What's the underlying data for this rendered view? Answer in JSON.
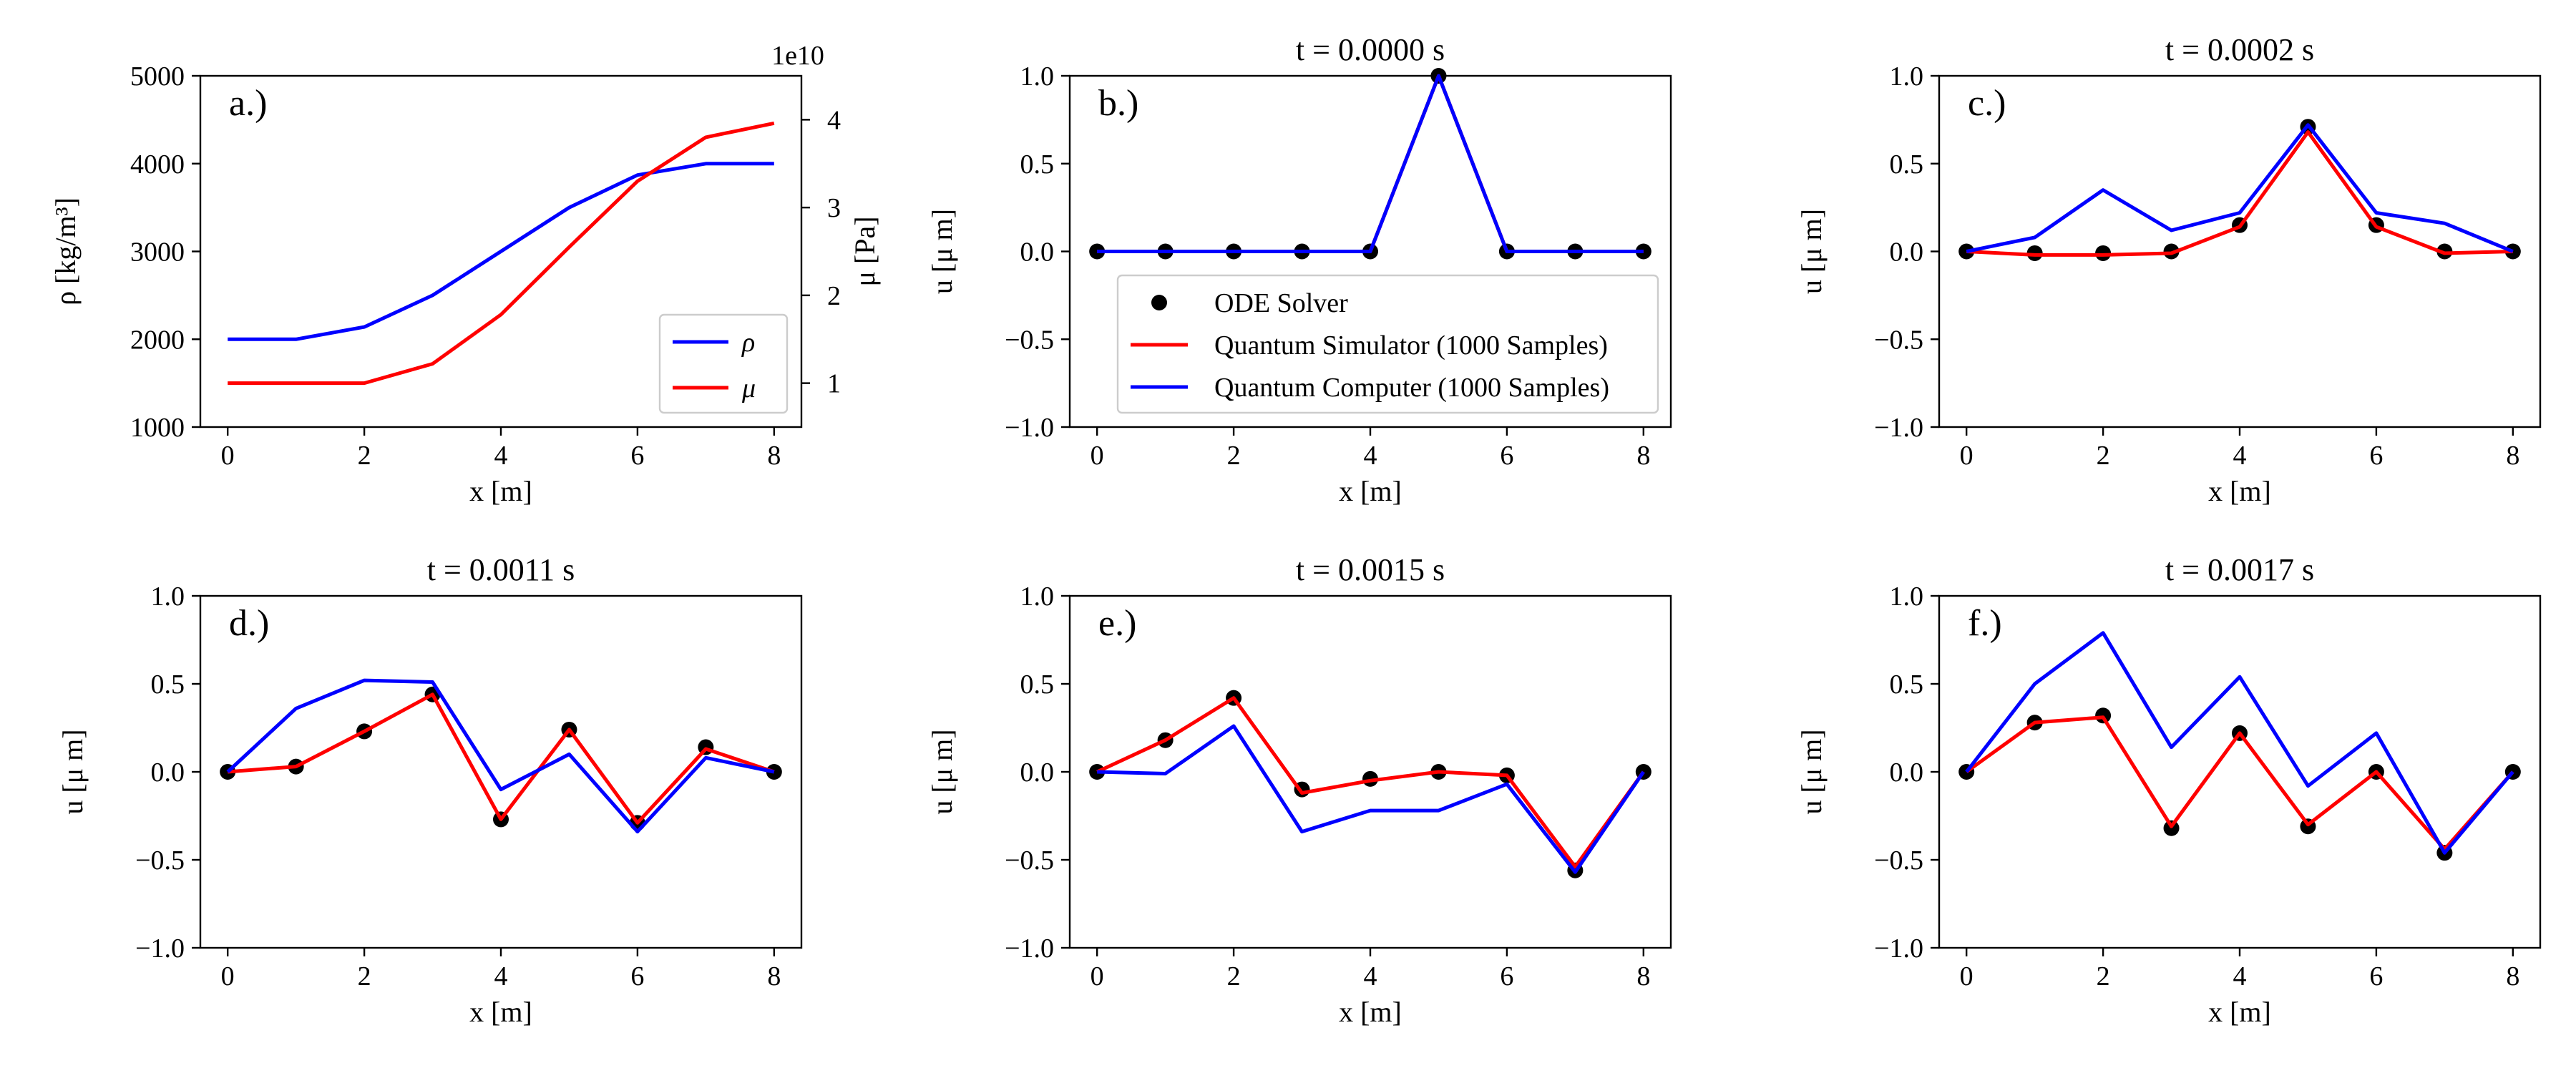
{
  "colors": {
    "blue": "#0000ff",
    "red": "#ff0000",
    "black": "#000000"
  },
  "chart_data": [
    {
      "id": "a",
      "type": "line",
      "panel_label": "a.)",
      "title": "",
      "xlabel": "x [m]",
      "ylabel_left": "ρ [kg/m³]",
      "ylabel_right": "μ [Pa]",
      "right_offset_label": "1e10",
      "xlim": [
        -0.4,
        8.4
      ],
      "ylim_left": [
        1000,
        5000
      ],
      "ylim_right": [
        0.5,
        4.5
      ],
      "xticks": [
        0,
        2,
        4,
        6,
        8
      ],
      "yticks_left": [
        1000,
        2000,
        3000,
        4000,
        5000
      ],
      "yticks_right": [
        1,
        2,
        3,
        4
      ],
      "legend_position": "lower-right",
      "legend": [
        "ρ",
        "μ"
      ],
      "series": [
        {
          "name": "ρ",
          "color": "blue",
          "axis": "left",
          "x": [
            0,
            1,
            2,
            3,
            4,
            5,
            6,
            7,
            8
          ],
          "values": [
            2000,
            2000,
            2140,
            2500,
            3000,
            3500,
            3870,
            4000,
            4000
          ]
        },
        {
          "name": "μ",
          "color": "red",
          "axis": "right",
          "x": [
            0,
            1,
            2,
            3,
            4,
            5,
            6,
            7,
            8
          ],
          "values": [
            1.0,
            1.0,
            1.0,
            1.22,
            1.78,
            2.55,
            3.3,
            3.8,
            3.96
          ]
        }
      ]
    },
    {
      "id": "b",
      "type": "line",
      "panel_label": "b.)",
      "title": "t = 0.0000 s",
      "xlabel": "x [m]",
      "ylabel": "u [μ m]",
      "xlim": [
        -0.4,
        8.4
      ],
      "ylim": [
        -1.0,
        1.0
      ],
      "xticks": [
        0,
        2,
        4,
        6,
        8
      ],
      "yticks": [
        -1.0,
        -0.5,
        0.0,
        0.5,
        1.0
      ],
      "ytick_labels": [
        "−1.0",
        "−0.5",
        "0.0",
        "0.5",
        "1.0"
      ],
      "legend_position": "lower-right",
      "legend": [
        "ODE Solver",
        "Quantum Simulator (1000 Samples)",
        "Quantum Computer (1000 Samples)"
      ],
      "series": [
        {
          "name": "ODE Solver",
          "kind": "scatter",
          "x": [
            0,
            1,
            2,
            3,
            4,
            5,
            6,
            7,
            8
          ],
          "values": [
            0,
            0,
            0,
            0,
            0,
            1.0,
            0,
            0,
            0
          ]
        },
        {
          "name": "Quantum Simulator (1000 Samples)",
          "kind": "line",
          "x": [
            0,
            1,
            2,
            3,
            4,
            5,
            6,
            7,
            8
          ],
          "values": [
            0,
            0,
            0,
            0,
            0,
            1.0,
            0,
            0,
            0
          ]
        },
        {
          "name": "Quantum Computer (1000 Samples)",
          "kind": "line",
          "x": [
            0,
            1,
            2,
            3,
            4,
            5,
            6,
            7,
            8
          ],
          "values": [
            0,
            0,
            0,
            0,
            0,
            1.0,
            0,
            0,
            0
          ]
        }
      ]
    },
    {
      "id": "c",
      "type": "line",
      "panel_label": "c.)",
      "title": "t = 0.0002 s",
      "xlabel": "x [m]",
      "ylabel": "u [μ m]",
      "xlim": [
        -0.4,
        8.4
      ],
      "ylim": [
        -1.0,
        1.0
      ],
      "xticks": [
        0,
        2,
        4,
        6,
        8
      ],
      "yticks": [
        -1.0,
        -0.5,
        0.0,
        0.5,
        1.0
      ],
      "ytick_labels": [
        "−1.0",
        "−0.5",
        "0.0",
        "0.5",
        "1.0"
      ],
      "series": [
        {
          "name": "ODE Solver",
          "kind": "scatter",
          "x": [
            0,
            1,
            2,
            3,
            4,
            5,
            6,
            7,
            8
          ],
          "values": [
            0,
            -0.01,
            -0.01,
            0.0,
            0.15,
            0.71,
            0.15,
            0.0,
            0.0
          ]
        },
        {
          "name": "Quantum Simulator (1000 Samples)",
          "kind": "line",
          "x": [
            0,
            1,
            2,
            3,
            4,
            5,
            6,
            7,
            8
          ],
          "values": [
            0,
            -0.02,
            -0.02,
            -0.01,
            0.14,
            0.68,
            0.14,
            -0.01,
            0.0
          ]
        },
        {
          "name": "Quantum Computer (1000 Samples)",
          "kind": "line",
          "x": [
            0,
            1,
            2,
            3,
            4,
            5,
            6,
            7,
            8
          ],
          "values": [
            0,
            0.08,
            0.35,
            0.12,
            0.22,
            0.72,
            0.22,
            0.16,
            0.0
          ]
        }
      ]
    },
    {
      "id": "d",
      "type": "line",
      "panel_label": "d.)",
      "title": "t = 0.0011 s",
      "xlabel": "x [m]",
      "ylabel": "u [μ m]",
      "xlim": [
        -0.4,
        8.4
      ],
      "ylim": [
        -1.0,
        1.0
      ],
      "xticks": [
        0,
        2,
        4,
        6,
        8
      ],
      "yticks": [
        -1.0,
        -0.5,
        0.0,
        0.5,
        1.0
      ],
      "ytick_labels": [
        "−1.0",
        "−0.5",
        "0.0",
        "0.5",
        "1.0"
      ],
      "series": [
        {
          "name": "ODE Solver",
          "kind": "scatter",
          "x": [
            0,
            1,
            2,
            3,
            4,
            5,
            6,
            7,
            8
          ],
          "values": [
            0,
            0.03,
            0.23,
            0.44,
            -0.27,
            0.24,
            -0.29,
            0.14,
            0.0
          ]
        },
        {
          "name": "Quantum Simulator (1000 Samples)",
          "kind": "line",
          "x": [
            0,
            1,
            2,
            3,
            4,
            5,
            6,
            7,
            8
          ],
          "values": [
            0,
            0.03,
            0.23,
            0.44,
            -0.27,
            0.24,
            -0.29,
            0.13,
            0.0
          ]
        },
        {
          "name": "Quantum Computer (1000 Samples)",
          "kind": "line",
          "x": [
            0,
            1,
            2,
            3,
            4,
            5,
            6,
            7,
            8
          ],
          "values": [
            0,
            0.36,
            0.52,
            0.51,
            -0.1,
            0.1,
            -0.34,
            0.08,
            0.0
          ]
        }
      ]
    },
    {
      "id": "e",
      "type": "line",
      "panel_label": "e.)",
      "title": "t = 0.0015 s",
      "xlabel": "x [m]",
      "ylabel": "u [μ m]",
      "xlim": [
        -0.4,
        8.4
      ],
      "ylim": [
        -1.0,
        1.0
      ],
      "xticks": [
        0,
        2,
        4,
        6,
        8
      ],
      "yticks": [
        -1.0,
        -0.5,
        0.0,
        0.5,
        1.0
      ],
      "ytick_labels": [
        "−1.0",
        "−0.5",
        "0.0",
        "0.5",
        "1.0"
      ],
      "series": [
        {
          "name": "ODE Solver",
          "kind": "scatter",
          "x": [
            0,
            1,
            2,
            3,
            4,
            5,
            6,
            7,
            8
          ],
          "values": [
            0,
            0.18,
            0.42,
            -0.1,
            -0.04,
            0.0,
            -0.02,
            -0.56,
            0.0
          ]
        },
        {
          "name": "Quantum Simulator (1000 Samples)",
          "kind": "line",
          "x": [
            0,
            1,
            2,
            3,
            4,
            5,
            6,
            7,
            8
          ],
          "values": [
            0,
            0.18,
            0.42,
            -0.12,
            -0.05,
            0.0,
            -0.02,
            -0.54,
            0.0
          ]
        },
        {
          "name": "Quantum Computer (1000 Samples)",
          "kind": "line",
          "x": [
            0,
            1,
            2,
            3,
            4,
            5,
            6,
            7,
            8
          ],
          "values": [
            0,
            -0.01,
            0.26,
            -0.34,
            -0.22,
            -0.22,
            -0.07,
            -0.57,
            0.0
          ]
        }
      ]
    },
    {
      "id": "f",
      "type": "line",
      "panel_label": "f.)",
      "title": "t = 0.0017 s",
      "xlabel": "x [m]",
      "ylabel": "u [μ m]",
      "xlim": [
        -0.4,
        8.4
      ],
      "ylim": [
        -1.0,
        1.0
      ],
      "xticks": [
        0,
        2,
        4,
        6,
        8
      ],
      "yticks": [
        -1.0,
        -0.5,
        0.0,
        0.5,
        1.0
      ],
      "ytick_labels": [
        "−1.0",
        "−0.5",
        "0.0",
        "0.5",
        "1.0"
      ],
      "series": [
        {
          "name": "ODE Solver",
          "kind": "scatter",
          "x": [
            0,
            1,
            2,
            3,
            4,
            5,
            6,
            7,
            8
          ],
          "values": [
            0,
            0.28,
            0.32,
            -0.32,
            0.22,
            -0.31,
            0.0,
            -0.46,
            0.0
          ]
        },
        {
          "name": "Quantum Simulator (1000 Samples)",
          "kind": "line",
          "x": [
            0,
            1,
            2,
            3,
            4,
            5,
            6,
            7,
            8
          ],
          "values": [
            0,
            0.28,
            0.31,
            -0.31,
            0.22,
            -0.3,
            0.0,
            -0.44,
            0.0
          ]
        },
        {
          "name": "Quantum Computer (1000 Samples)",
          "kind": "line",
          "x": [
            0,
            1,
            2,
            3,
            4,
            5,
            6,
            7,
            8
          ],
          "values": [
            0,
            0.5,
            0.79,
            0.14,
            0.54,
            -0.08,
            0.22,
            -0.46,
            0.0
          ]
        }
      ]
    }
  ]
}
